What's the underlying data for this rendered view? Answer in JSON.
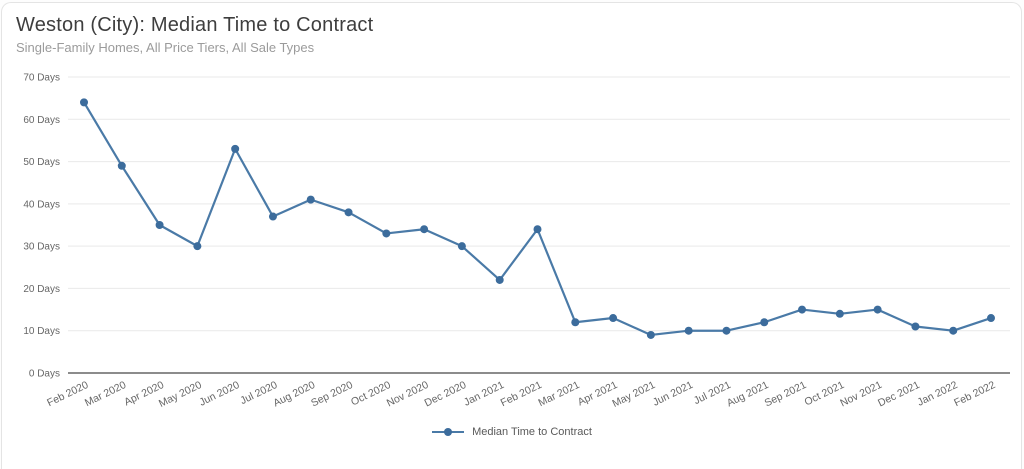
{
  "chart_data": {
    "type": "line",
    "title": "Weston (City): Median Time to Contract",
    "subtitle": "Single-Family Homes, All Price Tiers, All Sale Types",
    "categories": [
      "Feb 2020",
      "Mar 2020",
      "Apr 2020",
      "May 2020",
      "Jun 2020",
      "Jul 2020",
      "Aug 2020",
      "Sep 2020",
      "Oct 2020",
      "Nov 2020",
      "Dec 2020",
      "Jan 2021",
      "Feb 2021",
      "Mar 2021",
      "Apr 2021",
      "May 2021",
      "Jun 2021",
      "Jul 2021",
      "Aug 2021",
      "Sep 2021",
      "Oct 2021",
      "Nov 2021",
      "Dec 2021",
      "Jan 2022",
      "Feb 2022"
    ],
    "series": [
      {
        "name": "Median Time to Contract",
        "values": [
          64,
          49,
          35,
          30,
          53,
          37,
          41,
          38,
          33,
          34,
          30,
          22,
          34,
          12,
          13,
          9,
          10,
          10,
          12,
          15,
          14,
          15,
          11,
          10,
          13
        ],
        "line_color": "#4a7aa7",
        "marker_color": "#3c6c9c"
      }
    ],
    "xlabel": "",
    "ylabel": "",
    "ylim": [
      0,
      70
    ],
    "ytick_values": [
      0,
      10,
      20,
      30,
      40,
      50,
      60,
      70
    ],
    "ytick_labels": [
      "0 Days",
      "10 Days",
      "20 Days",
      "30 Days",
      "40 Days",
      "50 Days",
      "60 Days",
      "70 Days"
    ],
    "grid": true,
    "legend_position": "bottom"
  },
  "colors": {
    "axis_text": "#666666",
    "gridline": "#e9e9e9",
    "axis_line": "#8c8c8c",
    "title_text": "#3e3e3e",
    "subtitle_text": "#9b9b9b"
  }
}
